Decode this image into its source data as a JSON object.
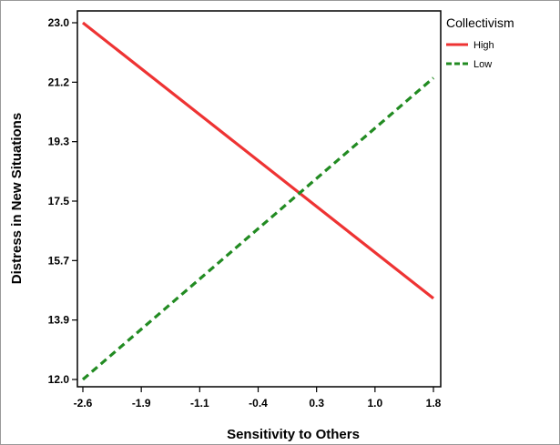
{
  "chart_data": {
    "type": "line",
    "title": "",
    "xlabel": "Sensitivity to Others",
    "ylabel": "Distress in New Situations",
    "xlim": [
      -2.6,
      1.8
    ],
    "ylim": [
      12.0,
      23.0
    ],
    "x_ticks": [
      "-2.6",
      "-1.9",
      "-1.1",
      "-0.4",
      "0.3",
      "1.0",
      "1.8"
    ],
    "y_ticks": [
      "12.0",
      "13.9",
      "15.7",
      "17.5",
      "19.3",
      "21.2",
      "23.0"
    ],
    "grid": false,
    "legend": {
      "title": "Collectivism",
      "position": "outside-top-right"
    },
    "series": [
      {
        "name": "High",
        "color": "#ee3333",
        "style": "solid",
        "x": [
          -2.6,
          1.8
        ],
        "y": [
          23.0,
          14.5
        ]
      },
      {
        "name": "Low",
        "color": "#228b22",
        "style": "dashed",
        "x": [
          -2.6,
          1.8
        ],
        "y": [
          12.0,
          21.3
        ]
      }
    ]
  }
}
